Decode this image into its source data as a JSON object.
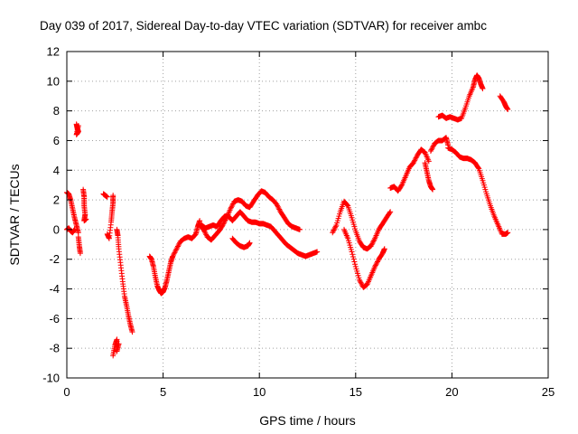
{
  "chart_data": {
    "type": "scatter",
    "title": "Day 039 of 2017, Sidereal Day-to-day VTEC variation (SDTVAR) for receiver ambc",
    "xlabel": "GPS time / hours",
    "ylabel": "SDTVAR / TECUs",
    "xlim": [
      0,
      25
    ],
    "ylim": [
      -10,
      12
    ],
    "x_ticks": [
      0,
      5,
      10,
      15,
      20,
      25
    ],
    "y_ticks": [
      -10,
      -8,
      -6,
      -4,
      -2,
      0,
      2,
      4,
      6,
      8,
      10,
      12
    ],
    "grid": true,
    "marker": "+",
    "marker_color": "#ff0000",
    "series": [
      {
        "name": "SDTVAR",
        "segments": [
          [
            [
              0.0,
              2.5
            ],
            [
              0.1,
              2.4
            ],
            [
              0.2,
              2.0
            ],
            [
              0.3,
              1.4
            ],
            [
              0.4,
              0.8
            ],
            [
              0.5,
              0.3
            ],
            [
              0.6,
              -0.2
            ]
          ],
          [
            [
              0.0,
              0.0
            ],
            [
              0.1,
              0.1
            ],
            [
              0.2,
              -0.1
            ],
            [
              0.3,
              -0.2
            ],
            [
              0.4,
              0.0
            ]
          ],
          [
            [
              0.5,
              7.1
            ],
            [
              0.55,
              6.8
            ],
            [
              0.6,
              6.6
            ],
            [
              0.5,
              6.4
            ],
            [
              0.6,
              7.0
            ]
          ],
          [
            [
              0.6,
              -0.5
            ],
            [
              0.65,
              -1.1
            ],
            [
              0.7,
              -1.6
            ]
          ],
          [
            [
              0.85,
              2.7
            ],
            [
              0.9,
              2.2
            ],
            [
              0.9,
              1.6
            ],
            [
              0.95,
              1.0
            ],
            [
              0.9,
              0.6
            ],
            [
              1.0,
              0.7
            ]
          ],
          [
            [
              1.9,
              2.4
            ],
            [
              2.0,
              2.3
            ],
            [
              2.1,
              2.2
            ]
          ],
          [
            [
              2.1,
              -0.3
            ],
            [
              2.2,
              -0.6
            ],
            [
              2.3,
              0.5
            ],
            [
              2.35,
              1.2
            ],
            [
              2.4,
              1.8
            ],
            [
              2.4,
              2.3
            ]
          ],
          [
            [
              2.6,
              0.0
            ],
            [
              2.65,
              -0.4
            ],
            [
              2.7,
              -1.3
            ],
            [
              2.8,
              -2.4
            ],
            [
              2.9,
              -3.5
            ],
            [
              3.0,
              -4.5
            ],
            [
              3.1,
              -5.1
            ],
            [
              3.2,
              -5.8
            ],
            [
              3.3,
              -6.4
            ],
            [
              3.4,
              -6.9
            ]
          ],
          [
            [
              2.4,
              -8.5
            ],
            [
              2.5,
              -7.8
            ],
            [
              2.6,
              -7.4
            ],
            [
              2.6,
              -8.2
            ],
            [
              2.7,
              -7.7
            ]
          ],
          [
            [
              4.3,
              -1.8
            ],
            [
              4.4,
              -2.0
            ],
            [
              4.5,
              -2.5
            ],
            [
              4.6,
              -3.2
            ],
            [
              4.7,
              -3.8
            ],
            [
              4.8,
              -4.1
            ],
            [
              4.9,
              -4.3
            ],
            [
              5.0,
              -4.2
            ],
            [
              5.1,
              -3.9
            ],
            [
              5.2,
              -3.4
            ],
            [
              5.3,
              -2.8
            ],
            [
              5.4,
              -2.2
            ],
            [
              5.5,
              -1.8
            ],
            [
              5.7,
              -1.3
            ],
            [
              5.9,
              -0.8
            ],
            [
              6.1,
              -0.6
            ],
            [
              6.3,
              -0.5
            ],
            [
              6.5,
              -0.6
            ],
            [
              6.7,
              -0.3
            ],
            [
              6.8,
              0.2
            ],
            [
              6.9,
              0.6
            ]
          ],
          [
            [
              6.9,
              0.3
            ],
            [
              7.1,
              0.0
            ],
            [
              7.3,
              -0.5
            ],
            [
              7.5,
              -0.7
            ],
            [
              7.7,
              -0.4
            ],
            [
              7.9,
              -0.1
            ],
            [
              8.1,
              0.3
            ],
            [
              8.3,
              0.8
            ],
            [
              8.5,
              1.4
            ],
            [
              8.7,
              1.9
            ],
            [
              8.9,
              2.0
            ],
            [
              9.1,
              1.9
            ],
            [
              9.3,
              1.6
            ],
            [
              9.5,
              1.5
            ],
            [
              9.7,
              1.9
            ],
            [
              9.9,
              2.3
            ],
            [
              10.1,
              2.6
            ],
            [
              10.3,
              2.5
            ],
            [
              10.5,
              2.2
            ],
            [
              10.7,
              2.0
            ],
            [
              10.9,
              1.7
            ],
            [
              11.1,
              1.2
            ],
            [
              11.3,
              0.8
            ],
            [
              11.5,
              0.4
            ],
            [
              11.7,
              0.2
            ],
            [
              11.9,
              0.1
            ],
            [
              12.1,
              0.0
            ]
          ],
          [
            [
              7.0,
              0.3
            ],
            [
              7.2,
              0.1
            ],
            [
              7.4,
              0.2
            ],
            [
              7.6,
              0.3
            ],
            [
              7.8,
              0.2
            ],
            [
              8.0,
              0.6
            ],
            [
              8.2,
              0.9
            ],
            [
              8.4,
              0.9
            ],
            [
              8.6,
              0.6
            ],
            [
              8.8,
              0.9
            ],
            [
              9.0,
              1.2
            ],
            [
              9.2,
              0.9
            ],
            [
              9.4,
              0.6
            ],
            [
              9.6,
              0.5
            ],
            [
              9.8,
              0.5
            ],
            [
              10.0,
              0.4
            ],
            [
              10.2,
              0.4
            ],
            [
              10.4,
              0.3
            ],
            [
              10.6,
              0.2
            ],
            [
              10.8,
              -0.1
            ],
            [
              11.0,
              -0.4
            ],
            [
              11.2,
              -0.7
            ],
            [
              11.4,
              -1.0
            ],
            [
              11.6,
              -1.2
            ],
            [
              11.8,
              -1.4
            ],
            [
              12.0,
              -1.6
            ],
            [
              12.2,
              -1.7
            ],
            [
              12.4,
              -1.8
            ],
            [
              12.6,
              -1.7
            ],
            [
              12.8,
              -1.6
            ],
            [
              13.0,
              -1.5
            ]
          ],
          [
            [
              8.6,
              -0.6
            ],
            [
              8.8,
              -0.9
            ],
            [
              9.0,
              -1.1
            ],
            [
              9.2,
              -1.2
            ],
            [
              9.4,
              -1.1
            ],
            [
              9.5,
              -0.9
            ]
          ],
          [
            [
              13.8,
              -0.2
            ],
            [
              14.0,
              0.3
            ],
            [
              14.2,
              1.2
            ],
            [
              14.4,
              1.9
            ],
            [
              14.6,
              1.6
            ],
            [
              14.8,
              0.8
            ],
            [
              15.0,
              -0.1
            ],
            [
              15.2,
              -0.8
            ],
            [
              15.4,
              -1.2
            ],
            [
              15.6,
              -1.3
            ],
            [
              15.8,
              -1.1
            ],
            [
              16.0,
              -0.6
            ],
            [
              16.2,
              0.0
            ],
            [
              16.4,
              0.4
            ],
            [
              16.6,
              0.8
            ],
            [
              16.8,
              1.2
            ]
          ],
          [
            [
              14.4,
              0.0
            ],
            [
              14.6,
              -0.6
            ],
            [
              14.8,
              -1.5
            ],
            [
              15.0,
              -2.5
            ],
            [
              15.2,
              -3.4
            ],
            [
              15.4,
              -3.9
            ],
            [
              15.6,
              -3.7
            ],
            [
              15.8,
              -3.1
            ],
            [
              16.0,
              -2.5
            ],
            [
              16.2,
              -2.0
            ],
            [
              16.4,
              -1.6
            ],
            [
              16.5,
              -1.3
            ]
          ],
          [
            [
              16.8,
              2.8
            ],
            [
              17.0,
              2.9
            ],
            [
              17.2,
              2.6
            ],
            [
              17.4,
              3.0
            ],
            [
              17.6,
              3.6
            ],
            [
              17.8,
              4.2
            ],
            [
              18.0,
              4.5
            ],
            [
              18.2,
              5.0
            ],
            [
              18.4,
              5.4
            ],
            [
              18.6,
              5.2
            ],
            [
              18.8,
              4.6
            ]
          ],
          [
            [
              18.6,
              4.5
            ],
            [
              18.7,
              3.9
            ],
            [
              18.8,
              3.3
            ],
            [
              18.9,
              2.9
            ],
            [
              19.0,
              2.7
            ]
          ],
          [
            [
              18.9,
              5.3
            ],
            [
              19.1,
              5.8
            ],
            [
              19.3,
              6.0
            ],
            [
              19.5,
              6.0
            ],
            [
              19.7,
              6.2
            ],
            [
              19.8,
              5.7
            ]
          ],
          [
            [
              19.8,
              5.5
            ],
            [
              20.0,
              5.4
            ],
            [
              20.2,
              5.2
            ],
            [
              20.4,
              4.9
            ],
            [
              20.6,
              4.8
            ],
            [
              20.8,
              4.8
            ],
            [
              21.0,
              4.7
            ],
            [
              21.2,
              4.5
            ],
            [
              21.4,
              4.1
            ],
            [
              21.6,
              3.3
            ],
            [
              21.8,
              2.4
            ],
            [
              22.0,
              1.6
            ],
            [
              22.2,
              0.9
            ],
            [
              22.4,
              0.3
            ],
            [
              22.6,
              -0.3
            ],
            [
              22.8,
              -0.3
            ],
            [
              22.9,
              -0.2
            ]
          ],
          [
            [
              19.3,
              7.6
            ],
            [
              19.5,
              7.7
            ],
            [
              19.7,
              7.5
            ],
            [
              19.9,
              7.6
            ],
            [
              20.1,
              7.5
            ],
            [
              20.3,
              7.4
            ],
            [
              20.5,
              7.5
            ],
            [
              20.7,
              8.2
            ],
            [
              20.9,
              9.0
            ],
            [
              21.1,
              9.6
            ],
            [
              21.2,
              10.1
            ],
            [
              21.3,
              10.4
            ],
            [
              21.4,
              10.2
            ],
            [
              21.5,
              9.8
            ],
            [
              21.6,
              9.5
            ]
          ],
          [
            [
              22.5,
              9.0
            ],
            [
              22.7,
              8.6
            ],
            [
              22.8,
              8.3
            ],
            [
              22.9,
              8.1
            ]
          ]
        ]
      }
    ]
  }
}
